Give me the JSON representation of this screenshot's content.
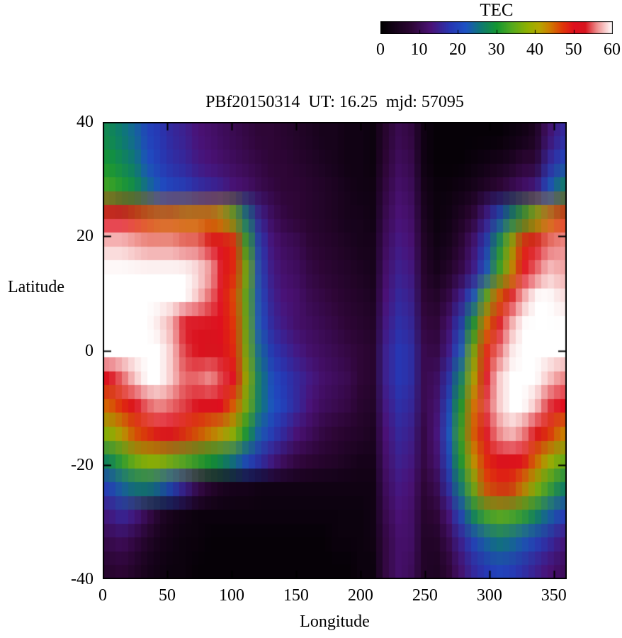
{
  "chart_data": {
    "type": "heatmap",
    "title": "PBf20150314  UT: 16.25  mjd: 57095",
    "xlabel": "Longitude",
    "ylabel": "Latitude",
    "xlim": [
      0,
      360
    ],
    "ylim": [
      -40,
      40
    ],
    "x_ticks": [
      0,
      50,
      100,
      150,
      200,
      250,
      300,
      350
    ],
    "y_ticks": [
      40,
      20,
      0,
      -20,
      -40
    ],
    "colorbar": {
      "label": "TEC",
      "min": 0,
      "max": 60,
      "ticks": [
        0,
        10,
        20,
        30,
        40,
        50,
        60
      ]
    },
    "palette": [
      [
        0.0,
        "#000000"
      ],
      [
        0.133,
        "#2e0636"
      ],
      [
        0.217,
        "#4b1277"
      ],
      [
        0.3,
        "#2737b3"
      ],
      [
        0.367,
        "#1d52c4"
      ],
      [
        0.433,
        "#0e7a72"
      ],
      [
        0.5,
        "#149632"
      ],
      [
        0.567,
        "#55aa1e"
      ],
      [
        0.633,
        "#8fb000"
      ],
      [
        0.683,
        "#b4a800"
      ],
      [
        0.733,
        "#d07800"
      ],
      [
        0.783,
        "#e03808"
      ],
      [
        0.833,
        "#e00f1e"
      ],
      [
        0.883,
        "#d8141e"
      ],
      [
        0.933,
        "#ee8c8c"
      ],
      [
        0.967,
        "#f8c8c8"
      ],
      [
        1.0,
        "#ffffff"
      ]
    ],
    "grid": {
      "lon_min": 0,
      "lon_max": 360,
      "lon_step": 10,
      "lat_max": 40,
      "lat_min": -40,
      "lat_step": 5,
      "row_order": "rows from lat 40 (top) to lat -40 (bottom)",
      "values": [
        [
          28,
          26,
          24,
          20,
          18,
          16,
          15,
          13,
          12,
          11,
          10,
          9,
          8,
          8,
          7,
          6,
          5,
          4,
          4,
          3,
          3,
          2,
          7,
          10,
          9,
          3,
          1,
          1,
          1,
          1,
          1,
          1,
          2,
          3,
          5,
          12,
          16
        ],
        [
          30,
          28,
          26,
          22,
          19,
          17,
          16,
          14,
          13,
          12,
          11,
          10,
          9,
          8,
          8,
          7,
          6,
          5,
          4,
          3,
          3,
          2,
          8,
          11,
          10,
          3,
          1,
          1,
          1,
          2,
          3,
          4,
          5,
          8,
          8,
          16,
          20
        ],
        [
          33,
          31,
          29,
          25,
          22,
          20,
          19,
          17,
          16,
          15,
          13,
          12,
          10,
          9,
          8,
          8,
          7,
          6,
          5,
          4,
          3,
          3,
          9,
          12,
          11,
          4,
          2,
          2,
          3,
          4,
          6,
          8,
          10,
          12,
          14,
          22,
          27
        ],
        [
          50,
          50,
          48,
          46,
          45,
          45,
          44,
          44,
          44,
          42,
          35,
          25,
          15,
          11,
          9,
          8,
          7,
          6,
          5,
          4,
          4,
          3,
          10,
          13,
          12,
          5,
          2,
          3,
          5,
          8,
          14,
          20,
          26,
          32,
          38,
          44,
          47
        ],
        [
          58,
          58,
          57,
          56,
          56,
          56,
          55,
          55,
          52,
          50,
          48,
          32,
          18,
          13,
          11,
          10,
          8,
          7,
          6,
          5,
          4,
          4,
          11,
          14,
          13,
          6,
          3,
          4,
          7,
          12,
          18,
          28,
          38,
          48,
          52,
          55,
          56
        ],
        [
          60,
          60,
          60,
          60,
          60,
          60,
          60,
          59,
          57,
          52,
          48,
          36,
          20,
          14,
          12,
          11,
          9,
          8,
          7,
          6,
          5,
          4,
          12,
          15,
          14,
          7,
          4,
          6,
          9,
          14,
          22,
          32,
          42,
          50,
          55,
          58,
          57
        ],
        [
          60,
          60,
          60,
          60,
          60,
          60,
          60,
          58,
          55,
          50,
          46,
          34,
          21,
          15,
          13,
          12,
          10,
          9,
          8,
          7,
          6,
          5,
          13,
          16,
          15,
          8,
          6,
          9,
          14,
          22,
          34,
          45,
          52,
          57,
          60,
          60,
          59
        ],
        [
          60,
          60,
          60,
          60,
          59,
          57,
          52,
          52,
          52,
          50,
          47,
          35,
          22,
          16,
          14,
          12,
          11,
          10,
          9,
          8,
          7,
          6,
          14,
          17,
          16,
          9,
          8,
          12,
          18,
          30,
          44,
          52,
          57,
          60,
          60,
          60,
          60
        ],
        [
          60,
          60,
          60,
          60,
          60,
          58,
          54,
          52,
          53,
          52,
          48,
          36,
          24,
          18,
          16,
          14,
          12,
          11,
          10,
          9,
          8,
          7,
          15,
          18,
          17,
          10,
          9,
          14,
          22,
          36,
          48,
          55,
          59,
          60,
          60,
          60,
          60
        ],
        [
          52,
          55,
          58,
          60,
          60,
          58,
          55,
          55,
          56,
          54,
          50,
          38,
          26,
          21,
          18,
          16,
          14,
          12,
          11,
          10,
          8,
          7,
          15,
          18,
          17,
          10,
          11,
          17,
          26,
          40,
          52,
          58,
          60,
          60,
          60,
          58,
          56
        ],
        [
          45,
          48,
          52,
          55,
          56,
          55,
          54,
          52,
          52,
          50,
          45,
          36,
          26,
          22,
          19,
          16,
          13,
          11,
          10,
          9,
          7,
          6,
          14,
          17,
          16,
          10,
          12,
          20,
          30,
          44,
          54,
          58,
          60,
          60,
          58,
          54,
          50
        ],
        [
          38,
          42,
          46,
          48,
          50,
          50,
          48,
          46,
          44,
          42,
          38,
          30,
          23,
          19,
          16,
          13,
          11,
          9,
          8,
          7,
          6,
          5,
          13,
          16,
          15,
          9,
          13,
          22,
          32,
          45,
          52,
          56,
          58,
          56,
          52,
          48,
          44
        ],
        [
          28,
          32,
          36,
          38,
          38,
          36,
          34,
          32,
          30,
          28,
          25,
          21,
          17,
          14,
          11,
          9,
          8,
          7,
          6,
          5,
          4,
          4,
          12,
          15,
          14,
          9,
          12,
          20,
          30,
          42,
          48,
          52,
          52,
          50,
          45,
          40,
          36
        ],
        [
          20,
          24,
          26,
          26,
          24,
          20,
          15,
          10,
          7,
          5,
          4,
          4,
          3,
          3,
          3,
          3,
          3,
          3,
          3,
          3,
          3,
          3,
          11,
          14,
          13,
          8,
          10,
          17,
          26,
          36,
          46,
          48,
          48,
          44,
          38,
          33,
          28
        ],
        [
          14,
          16,
          14,
          10,
          6,
          4,
          3,
          2,
          2,
          2,
          2,
          2,
          2,
          2,
          2,
          2,
          2,
          2,
          2,
          2,
          2,
          3,
          10,
          13,
          12,
          7,
          8,
          13,
          20,
          28,
          33,
          35,
          34,
          32,
          28,
          24,
          20
        ],
        [
          10,
          11,
          9,
          6,
          4,
          3,
          2,
          2,
          1,
          1,
          1,
          1,
          1,
          1,
          1,
          1,
          1,
          1,
          2,
          2,
          2,
          3,
          9,
          12,
          12,
          6,
          6,
          10,
          15,
          20,
          24,
          26,
          25,
          23,
          20,
          17,
          14
        ],
        [
          7,
          8,
          6,
          4,
          3,
          2,
          2,
          1,
          1,
          1,
          1,
          1,
          1,
          1,
          1,
          1,
          1,
          1,
          1,
          1,
          2,
          2,
          9,
          12,
          11,
          6,
          5,
          8,
          12,
          16,
          18,
          20,
          19,
          17,
          15,
          13,
          11
        ]
      ]
    }
  }
}
